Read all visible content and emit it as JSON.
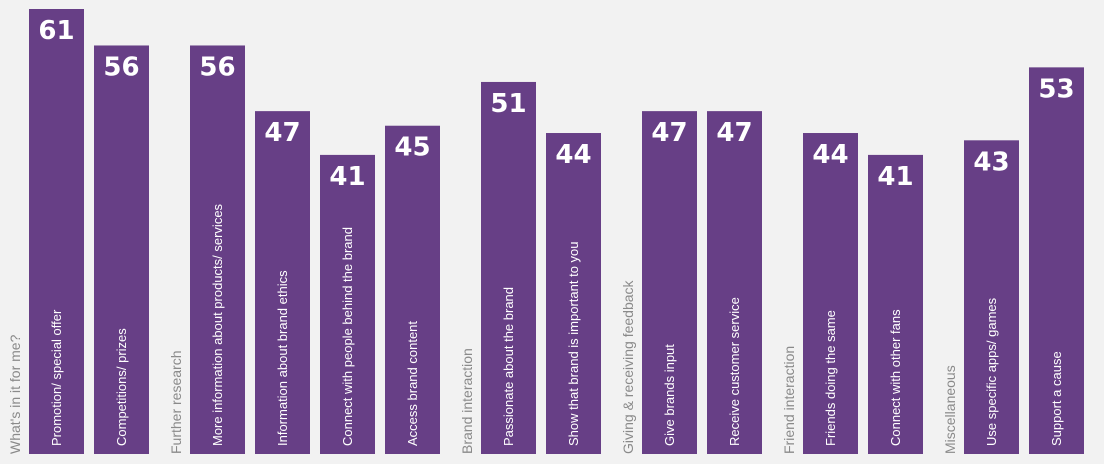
{
  "chart_data": {
    "type": "bar",
    "orientation": "vertical",
    "title": "",
    "xlabel": "",
    "ylabel": "",
    "ylim": [
      0,
      61
    ],
    "grid": false,
    "legend": "none",
    "bar_color": "#673f86",
    "background_color": "#f2f2f2",
    "value_label_color": "#ffffff",
    "group_label_color": "#8a8a8a",
    "groups": [
      {
        "name": "What's in it for me?",
        "bars": [
          {
            "category": "Promotion/ special offer",
            "value": 61
          },
          {
            "category": "Competitions/ prizes",
            "value": 56
          }
        ]
      },
      {
        "name": "Further research",
        "bars": [
          {
            "category": "More information about products/ services",
            "value": 56
          },
          {
            "category": "Information about brand ethics",
            "value": 47
          },
          {
            "category": "Connect with people behind the brand",
            "value": 41
          },
          {
            "category": "Access brand content",
            "value": 45
          }
        ]
      },
      {
        "name": "Brand interaction",
        "bars": [
          {
            "category": "Passionate about the brand",
            "value": 51
          },
          {
            "category": "Show that brand is important to you",
            "value": 44
          }
        ]
      },
      {
        "name": "Giving & receiving feedback",
        "bars": [
          {
            "category": "Give brands input",
            "value": 47
          },
          {
            "category": "Receive customer service",
            "value": 47
          }
        ]
      },
      {
        "name": "Friend interaction",
        "bars": [
          {
            "category": "Friends doing the same",
            "value": 44
          },
          {
            "category": "Connect with other fans",
            "value": 41
          }
        ]
      },
      {
        "name": "Miscellaneous",
        "bars": [
          {
            "category": "Use specific apps/ games",
            "value": 43
          },
          {
            "category": "Support a cause",
            "value": 53
          }
        ]
      }
    ]
  }
}
